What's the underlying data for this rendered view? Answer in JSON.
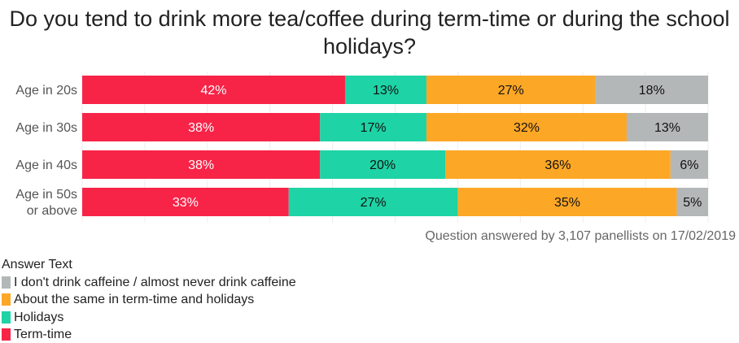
{
  "chart_data": {
    "type": "bar",
    "orientation": "horizontal",
    "stacked": true,
    "title": "Do you tend to drink more tea/coffee during term-time or during the school holidays?",
    "caption": "Question answered by 3,107 panellists on 17/02/2019",
    "categories": [
      "Age in 20s",
      "Age in 30s",
      "Age in 40s",
      "Age in 50s or above"
    ],
    "xlim": [
      0,
      100
    ],
    "grid": true,
    "legend_title": "Answer Text",
    "legend_placement": "bottom-left",
    "series": [
      {
        "name": "Term-time",
        "color": "#f72448",
        "label_color": "#ffffff",
        "values": [
          42,
          38,
          38,
          33
        ]
      },
      {
        "name": "Holidays",
        "color": "#1ed3a5",
        "label_color": "#111111",
        "values": [
          13,
          17,
          20,
          27
        ]
      },
      {
        "name": "About the same in term-time and holidays",
        "color": "#fda726",
        "label_color": "#111111",
        "values": [
          27,
          32,
          36,
          35
        ]
      },
      {
        "name": "I don't drink caffeine / almost never drink caffeine",
        "color": "#b4b7b8",
        "label_color": "#111111",
        "values": [
          18,
          13,
          6,
          5
        ]
      }
    ],
    "legend_order": [
      3,
      2,
      1,
      0
    ]
  }
}
